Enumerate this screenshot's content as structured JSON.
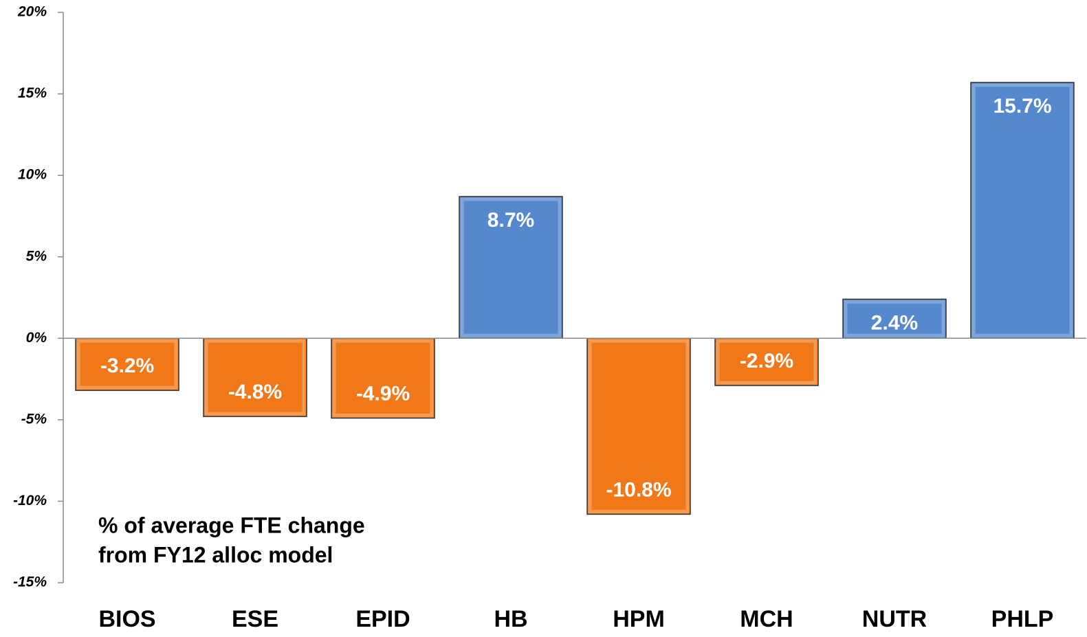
{
  "chart_data": {
    "type": "bar",
    "categories": [
      "BIOS",
      "ESE",
      "EPID",
      "HB",
      "HPM",
      "MCH",
      "NUTR",
      "PHLP"
    ],
    "values": [
      -3.2,
      -4.8,
      -4.9,
      8.7,
      -10.8,
      -2.9,
      2.4,
      15.7
    ],
    "value_labels": [
      "-3.2%",
      "-4.8%",
      "-4.9%",
      "8.7%",
      "-10.8%",
      "-2.9%",
      "2.4%",
      "15.7%"
    ],
    "colors": [
      "#f07818",
      "#f07818",
      "#f07818",
      "#5588cc",
      "#f07818",
      "#f07818",
      "#5588cc",
      "#5588cc"
    ],
    "ylim": [
      -15,
      20
    ],
    "yticks": [
      {
        "value": -15,
        "label": "-15%"
      },
      {
        "value": -10,
        "label": "-10%"
      },
      {
        "value": -5,
        "label": "-5%"
      },
      {
        "value": 0,
        "label": "0%"
      },
      {
        "value": 5,
        "label": "5%"
      },
      {
        "value": 10,
        "label": "10%"
      },
      {
        "value": 15,
        "label": "15%"
      },
      {
        "value": 20,
        "label": "20%"
      }
    ],
    "annotation": [
      "% of average FTE change",
      "from FY12 alloc model"
    ],
    "grid": false
  }
}
